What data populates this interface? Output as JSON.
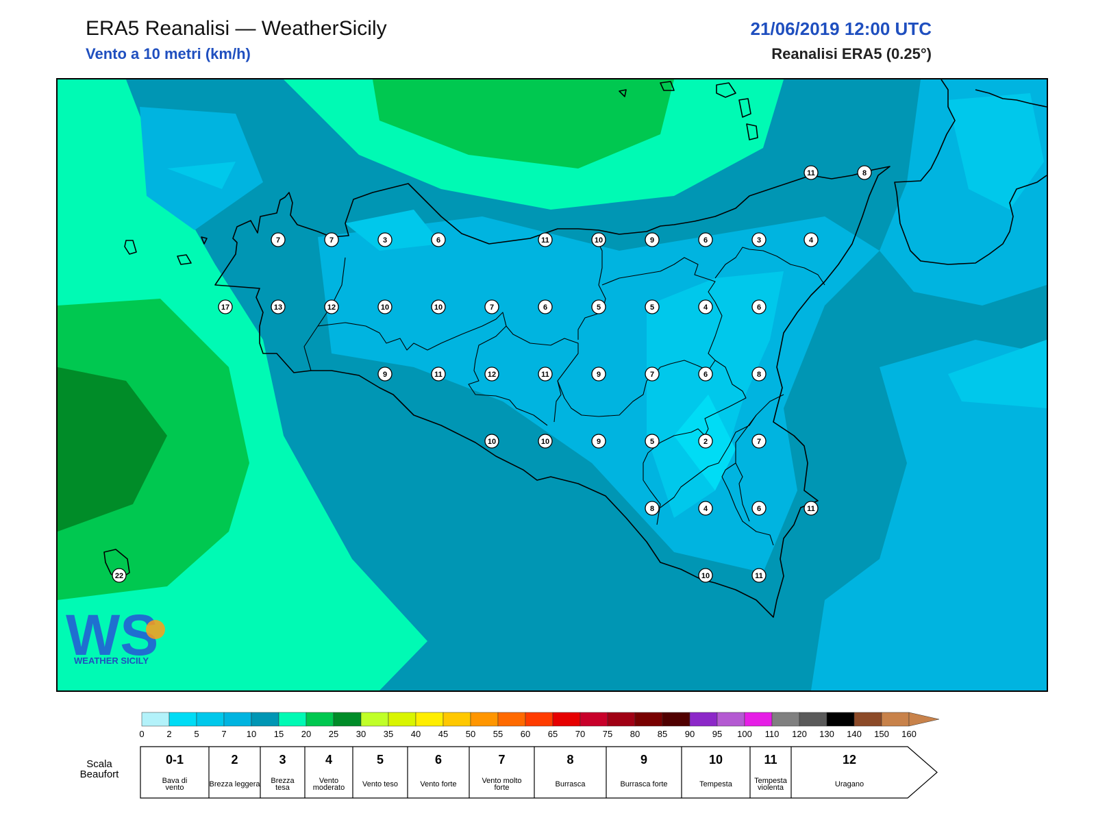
{
  "header": {
    "title": "ERA5 Reanalisi — WeatherSicily",
    "subtitle": "Vento a 10 metri (km/h)",
    "datetime": "21/06/2019 12:00 UTC",
    "source": "Reanalisi ERA5 (0.25°)"
  },
  "logo": {
    "text": "WS",
    "caption": "WEATHER SICILY"
  },
  "colors": {
    "land_outline": "#000000",
    "title_blue": "#1f4fbf"
  },
  "colorbar": {
    "ticks": [
      "0",
      "2",
      "5",
      "7",
      "10",
      "15",
      "20",
      "25",
      "30",
      "35",
      "40",
      "45",
      "50",
      "55",
      "60",
      "65",
      "70",
      "75",
      "80",
      "85",
      "90",
      "95",
      "100",
      "110",
      "120",
      "130",
      "140",
      "150",
      "160"
    ],
    "colors": [
      "#b3f2fa",
      "#00dcf5",
      "#00c8eb",
      "#00b4e0",
      "#0096b4",
      "#00fab4",
      "#00c850",
      "#008c28",
      "#c0ff28",
      "#d9f500",
      "#ffee00",
      "#ffc800",
      "#ff9600",
      "#ff6a00",
      "#ff3c00",
      "#e60000",
      "#c8002a",
      "#a00014",
      "#780000",
      "#500000",
      "#8c28c8",
      "#b45ad2",
      "#e61ee6",
      "#808080",
      "#5a5a5a",
      "#000000",
      "#8c4a28",
      "#c8824a"
    ]
  },
  "beaufort": {
    "label": "Scala Beaufort",
    "classes": [
      {
        "force": "0-1",
        "name": "Bava di vento"
      },
      {
        "force": "2",
        "name": "Brezza leggera"
      },
      {
        "force": "3",
        "name": "Brezza tesa"
      },
      {
        "force": "4",
        "name": "Vento moderato"
      },
      {
        "force": "5",
        "name": "Vento teso"
      },
      {
        "force": "6",
        "name": "Vento forte"
      },
      {
        "force": "7",
        "name": "Vento molto forte"
      },
      {
        "force": "8",
        "name": "Burrasca"
      },
      {
        "force": "9",
        "name": "Burrasca forte"
      },
      {
        "force": "10",
        "name": "Tempesta"
      },
      {
        "force": "11",
        "name": "Tempesta violenta"
      },
      {
        "force": "12",
        "name": "Uragano"
      }
    ]
  },
  "stations": {
    "values": [
      "11",
      "8",
      "7",
      "7",
      "3",
      "6",
      "11",
      "10",
      "9",
      "6",
      "3",
      "4",
      "17",
      "13",
      "12",
      "10",
      "10",
      "7",
      "6",
      "5",
      "5",
      "4",
      "6",
      "9",
      "11",
      "12",
      "11",
      "9",
      "7",
      "6",
      "8",
      "10",
      "10",
      "9",
      "5",
      "2",
      "7",
      "8",
      "4",
      "6",
      "11",
      "22",
      "10",
      "11"
    ]
  }
}
